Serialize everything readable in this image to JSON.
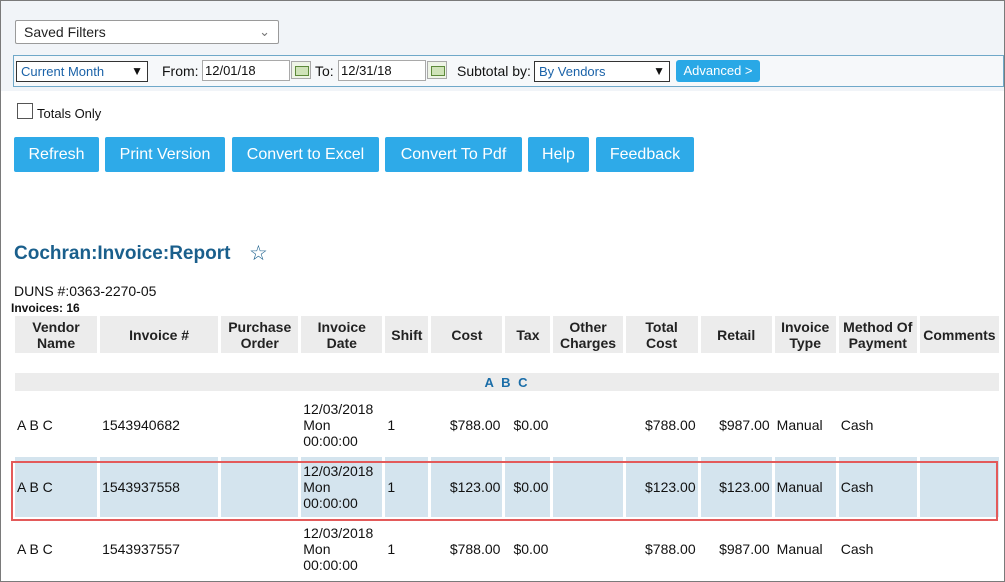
{
  "saved_filters": {
    "label": "Saved Filters"
  },
  "filter_bar": {
    "period": "Current Month",
    "from_label": "From:",
    "from_value": "12/01/18",
    "to_label": "To:",
    "to_value": "12/31/18",
    "subtotal_label": "Subtotal by:",
    "subtotal_value": "By Vendors",
    "advanced_label": "Advanced >"
  },
  "totals_only": {
    "label": "Totals Only",
    "checked": false
  },
  "actions": {
    "refresh": "Refresh",
    "print": "Print Version",
    "excel": "Convert to Excel",
    "pdf": "Convert To Pdf",
    "help": "Help",
    "feedback": "Feedback"
  },
  "report": {
    "title": "Cochran:Invoice:Report",
    "duns": "DUNS #:0363-2270-05",
    "invoices_label": "Invoices:",
    "invoices_count": "16"
  },
  "table": {
    "headers": {
      "vendor_line1": "Vendor",
      "vendor_line2": "Name",
      "invoice": "Invoice #",
      "po_line1": "Purchase",
      "po_line2": "Order",
      "date_line1": "Invoice",
      "date_line2": "Date",
      "shift": "Shift",
      "cost": "Cost",
      "tax": "Tax",
      "other_line1": "Other",
      "other_line2": "Charges",
      "total_line1": "Total",
      "total_line2": "Cost",
      "retail": "Retail",
      "type_line1": "Invoice",
      "type_line2": "Type",
      "method_line1": "Method Of",
      "method_line2": "Payment",
      "comments": "Comments"
    },
    "group": "A B C",
    "rows": [
      {
        "vendor": "A B C",
        "invoice": "1543940682",
        "date1": "12/03/2018",
        "date2": "Mon",
        "date3": "00:00:00",
        "shift": "1",
        "cost": "$788.00",
        "tax": "$0.00",
        "total": "$788.00",
        "retail": "$987.00",
        "type": "Manual",
        "method": "Cash"
      },
      {
        "vendor": "A B C",
        "invoice": "1543937558",
        "date1": "12/03/2018",
        "date2": "Mon",
        "date3": "00:00:00",
        "shift": "1",
        "cost": "$123.00",
        "tax": "$0.00",
        "total": "$123.00",
        "retail": "$123.00",
        "type": "Manual",
        "method": "Cash"
      },
      {
        "vendor": "A B C",
        "invoice": "1543937557",
        "date1": "12/03/2018",
        "date2": "Mon",
        "date3": "00:00:00",
        "shift": "1",
        "cost": "$788.00",
        "tax": "$0.00",
        "total": "$788.00",
        "retail": "$987.00",
        "type": "Manual",
        "method": "Cash"
      }
    ]
  },
  "colors": {
    "accent_button": "#2eaae8",
    "title": "#1a5f8c",
    "selected_row": "#d4e4ee",
    "selection_outline": "#e35a5a"
  }
}
